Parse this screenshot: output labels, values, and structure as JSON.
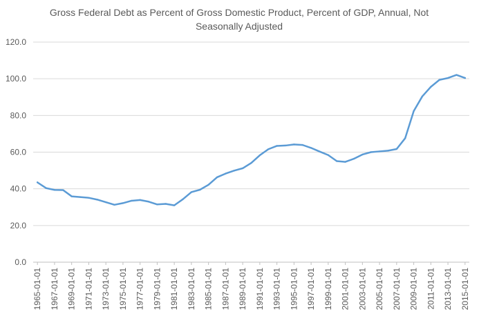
{
  "chart_data": {
    "type": "line",
    "title_lines": [
      "Gross Federal Debt as Percent of Gross Domestic Product, Percent of GDP, Annual, Not",
      "Seasonally Adjusted"
    ],
    "xlabel": "",
    "ylabel": "",
    "ylim": [
      0,
      120
    ],
    "y_ticks": [
      "0.0",
      "20.0",
      "40.0",
      "60.0",
      "80.0",
      "100.0",
      "120.0"
    ],
    "x_tick_labels": [
      "1965-01-01",
      "1967-01-01",
      "1969-01-01",
      "1971-01-01",
      "1973-01-01",
      "1975-01-01",
      "1977-01-01",
      "1979-01-01",
      "1981-01-01",
      "1983-01-01",
      "1985-01-01",
      "1987-01-01",
      "1989-01-01",
      "1991-01-01",
      "1993-01-01",
      "1995-01-01",
      "1997-01-01",
      "1999-01-01",
      "2001-01-01",
      "2003-01-01",
      "2005-01-01",
      "2007-01-01",
      "2009-01-01",
      "2011-01-01",
      "2013-01-01",
      "2015-01-01"
    ],
    "gridlines": "horizontal",
    "legend": "none",
    "series": [
      {
        "color": "#5b9bd5",
        "x": [
          "1965-01-01",
          "1966-01-01",
          "1967-01-01",
          "1968-01-01",
          "1969-01-01",
          "1970-01-01",
          "1971-01-01",
          "1972-01-01",
          "1973-01-01",
          "1974-01-01",
          "1975-01-01",
          "1976-01-01",
          "1977-01-01",
          "1978-01-01",
          "1979-01-01",
          "1980-01-01",
          "1981-01-01",
          "1982-01-01",
          "1983-01-01",
          "1984-01-01",
          "1985-01-01",
          "1986-01-01",
          "1987-01-01",
          "1988-01-01",
          "1989-01-01",
          "1990-01-01",
          "1991-01-01",
          "1992-01-01",
          "1993-01-01",
          "1994-01-01",
          "1995-01-01",
          "1996-01-01",
          "1997-01-01",
          "1998-01-01",
          "1999-01-01",
          "2000-01-01",
          "2001-01-01",
          "2002-01-01",
          "2003-01-01",
          "2004-01-01",
          "2005-01-01",
          "2006-01-01",
          "2007-01-01",
          "2008-01-01",
          "2009-01-01",
          "2010-01-01",
          "2011-01-01",
          "2012-01-01",
          "2013-01-01",
          "2014-01-01",
          "2015-01-01"
        ],
        "values": [
          43.5,
          40.4,
          39.4,
          39.3,
          35.9,
          35.5,
          35.1,
          34.1,
          32.7,
          31.3,
          32.2,
          33.5,
          33.9,
          33.0,
          31.5,
          31.8,
          31.0,
          34.3,
          38.2,
          39.5,
          42.2,
          46.3,
          48.3,
          49.9,
          51.2,
          54.1,
          58.3,
          61.6,
          63.4,
          63.6,
          64.2,
          63.9,
          62.3,
          60.3,
          58.4,
          55.1,
          54.7,
          56.4,
          58.7,
          60.0,
          60.4,
          60.8,
          61.7,
          67.6,
          82.4,
          90.4,
          95.6,
          99.4,
          100.4,
          102.1,
          100.4
        ]
      }
    ]
  }
}
